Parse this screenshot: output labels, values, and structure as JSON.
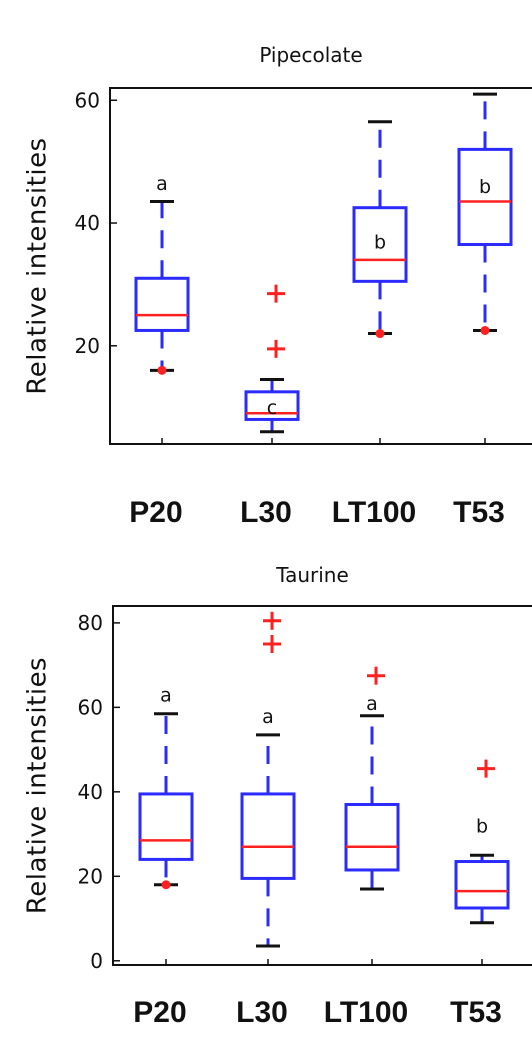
{
  "chart_data": [
    {
      "type": "box",
      "title": "Pipecolate",
      "ylabel": "Relative intensities",
      "categories": [
        "P20",
        "L30",
        "LT100",
        "T53"
      ],
      "ylim": [
        4,
        62
      ],
      "yticks": [
        20,
        40,
        60
      ],
      "boxes": [
        {
          "whisker_low": 16,
          "q1": 22.5,
          "median": 25,
          "q3": 31,
          "whisker_high": 43.5,
          "outliers": [],
          "low_dot": 16,
          "letter": "a",
          "letter_y": 46.5
        },
        {
          "whisker_low": 6,
          "q1": 8,
          "median": 9,
          "q3": 12.5,
          "whisker_high": 14.5,
          "outliers": [
            28.5,
            19.5
          ],
          "low_dot": null,
          "letter": "c",
          "letter_y": 10
        },
        {
          "whisker_low": 22,
          "q1": 30.5,
          "median": 34,
          "q3": 42.5,
          "whisker_high": 56.5,
          "outliers": [],
          "low_dot": 22,
          "letter": "b",
          "letter_y": 37
        },
        {
          "whisker_low": 22.5,
          "q1": 36.5,
          "median": 43.5,
          "q3": 52,
          "whisker_high": 61,
          "outliers": [],
          "low_dot": 22.5,
          "letter": "b",
          "letter_y": 46
        }
      ]
    },
    {
      "type": "box",
      "title": "Taurine",
      "ylabel": "Relative intensities",
      "categories": [
        "P20",
        "L30",
        "LT100",
        "T53"
      ],
      "ylim": [
        -1,
        84
      ],
      "yticks": [
        0,
        20,
        40,
        60,
        80
      ],
      "boxes": [
        {
          "whisker_low": 18,
          "q1": 24,
          "median": 28.5,
          "q3": 39.5,
          "whisker_high": 58.5,
          "outliers": [],
          "low_dot": 18,
          "letter": "a",
          "letter_y": 63
        },
        {
          "whisker_low": 3.5,
          "q1": 19.5,
          "median": 27,
          "q3": 39.5,
          "whisker_high": 53.5,
          "outliers": [
            80.5,
            75
          ],
          "low_dot": null,
          "letter": "a",
          "letter_y": 58
        },
        {
          "whisker_low": 17,
          "q1": 21.5,
          "median": 27,
          "q3": 37,
          "whisker_high": 58,
          "outliers": [
            67.5
          ],
          "low_dot": null,
          "letter": "a",
          "letter_y": 61
        },
        {
          "whisker_low": 9,
          "q1": 12.5,
          "median": 16.5,
          "q3": 23.5,
          "whisker_high": 25,
          "outliers": [
            45.5
          ],
          "low_dot": null,
          "letter": "b",
          "letter_y": 32
        }
      ]
    }
  ]
}
